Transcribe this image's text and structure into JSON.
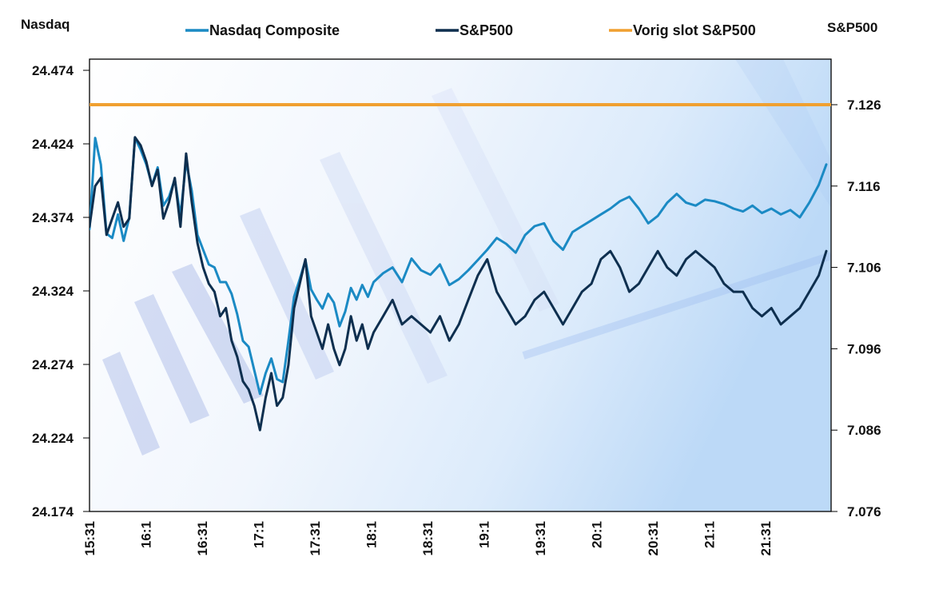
{
  "chart_data": {
    "type": "line",
    "title": "",
    "left_axis": {
      "title": "Nasdaq",
      "range": [
        24.174,
        24.474
      ],
      "ticks": [
        "24.474",
        "24.424",
        "24.374",
        "24.324",
        "24.274",
        "24.224",
        "24.174"
      ],
      "tick_values": [
        24.474,
        24.424,
        24.374,
        24.324,
        24.274,
        24.224,
        24.174
      ]
    },
    "right_axis": {
      "title": "S&P500",
      "range": [
        7.076,
        7.129
      ],
      "ticks": [
        "7.126",
        "7.116",
        "7.106",
        "7.096",
        "7.086",
        "7.076"
      ],
      "tick_values": [
        7.126,
        7.116,
        7.106,
        7.096,
        7.086,
        7.076
      ]
    },
    "x_ticks": [
      "15:31",
      "16:1",
      "16:31",
      "17:1",
      "17:31",
      "18:1",
      "18:31",
      "19:1",
      "19:31",
      "20:1",
      "20:31",
      "21:1",
      "21:31"
    ],
    "x_range_minutes": [
      0,
      389
    ],
    "grid": false,
    "legend_position": "top",
    "legend": [
      {
        "name": "Nasdaq Composite",
        "color": "#1b8ac4"
      },
      {
        "name": "S&P500",
        "color": "#0e2f4f"
      },
      {
        "name": "Vorig slot S&P500",
        "color": "#f0a030"
      }
    ],
    "series": [
      {
        "name": "Nasdaq Composite",
        "axis": "left",
        "color": "#1b8ac4",
        "x_minutes": [
          0,
          3,
          6,
          9,
          12,
          15,
          18,
          21,
          24,
          27,
          30,
          33,
          36,
          39,
          42,
          45,
          48,
          51,
          54,
          57,
          60,
          63,
          66,
          69,
          72,
          75,
          78,
          81,
          84,
          87,
          90,
          93,
          96,
          99,
          102,
          105,
          108,
          111,
          114,
          117,
          120,
          123,
          126,
          129,
          132,
          135,
          138,
          141,
          144,
          147,
          150,
          155,
          160,
          165,
          170,
          175,
          180,
          185,
          190,
          195,
          200,
          205,
          210,
          215,
          220,
          225,
          230,
          235,
          240,
          245,
          250,
          255,
          260,
          265,
          270,
          275,
          280,
          285,
          290,
          295,
          300,
          305,
          310,
          315,
          320,
          325,
          330,
          335,
          340,
          345,
          350,
          355,
          360,
          365,
          370,
          375,
          380,
          385,
          389
        ],
        "values": [
          24.366,
          24.428,
          24.41,
          24.363,
          24.36,
          24.376,
          24.358,
          24.374,
          24.428,
          24.42,
          24.41,
          24.396,
          24.408,
          24.382,
          24.388,
          24.4,
          24.375,
          24.412,
          24.392,
          24.362,
          24.352,
          24.342,
          24.34,
          24.33,
          24.33,
          24.322,
          24.308,
          24.29,
          24.286,
          24.27,
          24.254,
          24.268,
          24.278,
          24.264,
          24.262,
          24.29,
          24.32,
          24.332,
          24.345,
          24.325,
          24.318,
          24.312,
          24.322,
          24.316,
          24.3,
          24.31,
          24.326,
          24.318,
          24.328,
          24.32,
          24.33,
          24.336,
          24.34,
          24.33,
          24.346,
          24.338,
          24.335,
          24.342,
          24.328,
          24.332,
          24.338,
          24.345,
          24.352,
          24.36,
          24.356,
          24.35,
          24.362,
          24.368,
          24.37,
          24.358,
          24.352,
          24.364,
          24.368,
          24.372,
          24.376,
          24.38,
          24.385,
          24.388,
          24.38,
          24.37,
          24.375,
          24.384,
          24.39,
          24.384,
          24.382,
          24.386,
          24.385,
          24.383,
          24.38,
          24.378,
          24.382,
          24.377,
          24.38,
          24.376,
          24.379,
          24.374,
          24.384,
          24.396,
          24.41
        ]
      },
      {
        "name": "S&P500",
        "axis": "right",
        "color": "#0e2f4f",
        "x_minutes": [
          0,
          3,
          6,
          9,
          12,
          15,
          18,
          21,
          24,
          27,
          30,
          33,
          36,
          39,
          42,
          45,
          48,
          51,
          54,
          57,
          60,
          63,
          66,
          69,
          72,
          75,
          78,
          81,
          84,
          87,
          90,
          93,
          96,
          99,
          102,
          105,
          108,
          111,
          114,
          117,
          120,
          123,
          126,
          129,
          132,
          135,
          138,
          141,
          144,
          147,
          150,
          155,
          160,
          165,
          170,
          175,
          180,
          185,
          190,
          195,
          200,
          205,
          210,
          215,
          220,
          225,
          230,
          235,
          240,
          245,
          250,
          255,
          260,
          265,
          270,
          275,
          280,
          285,
          290,
          295,
          300,
          305,
          310,
          315,
          320,
          325,
          330,
          335,
          340,
          345,
          350,
          355,
          360,
          365,
          370,
          375,
          380,
          385,
          389
        ],
        "values": [
          7.111,
          7.116,
          7.117,
          7.11,
          7.112,
          7.114,
          7.111,
          7.112,
          7.122,
          7.121,
          7.119,
          7.116,
          7.118,
          7.112,
          7.114,
          7.117,
          7.111,
          7.12,
          7.114,
          7.109,
          7.106,
          7.104,
          7.103,
          7.1,
          7.101,
          7.097,
          7.095,
          7.092,
          7.091,
          7.089,
          7.086,
          7.09,
          7.093,
          7.089,
          7.09,
          7.094,
          7.101,
          7.104,
          7.107,
          7.1,
          7.098,
          7.096,
          7.099,
          7.096,
          7.094,
          7.096,
          7.1,
          7.097,
          7.099,
          7.096,
          7.098,
          7.1,
          7.102,
          7.099,
          7.1,
          7.099,
          7.098,
          7.1,
          7.097,
          7.099,
          7.102,
          7.105,
          7.107,
          7.103,
          7.101,
          7.099,
          7.1,
          7.102,
          7.103,
          7.101,
          7.099,
          7.101,
          7.103,
          7.104,
          7.107,
          7.108,
          7.106,
          7.103,
          7.104,
          7.106,
          7.108,
          7.106,
          7.105,
          7.107,
          7.108,
          7.107,
          7.106,
          7.104,
          7.103,
          7.103,
          7.101,
          7.1,
          7.101,
          7.099,
          7.1,
          7.101,
          7.103,
          7.105,
          7.108
        ]
      },
      {
        "name": "Vorig slot S&P500",
        "axis": "right",
        "color": "#f0a030",
        "x_minutes": [
          0,
          389
        ],
        "values": [
          7.126,
          7.126
        ]
      }
    ]
  }
}
